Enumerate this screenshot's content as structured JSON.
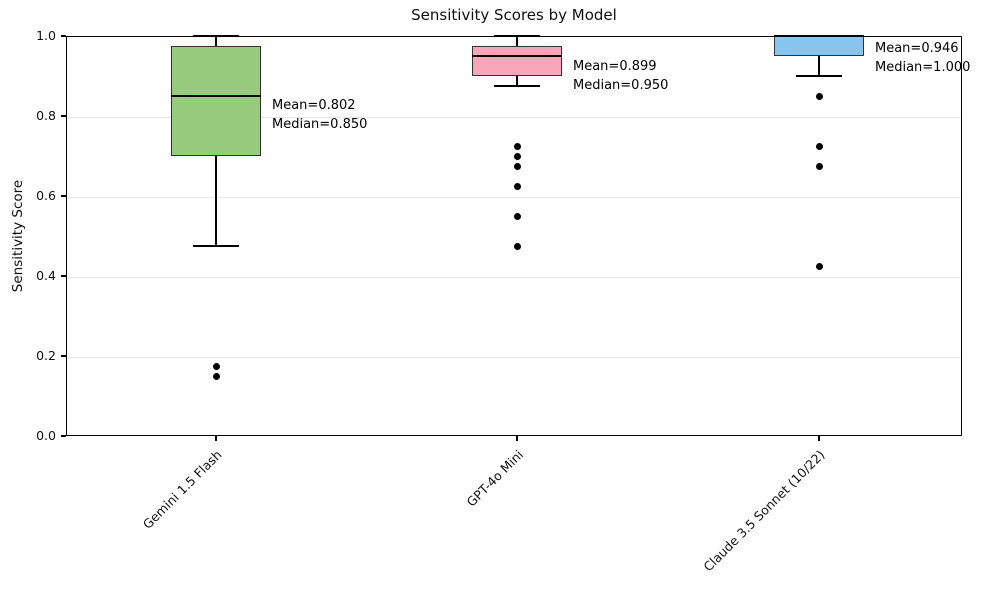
{
  "figure_title": "Sensitivity Scores by Model",
  "chart_data": {
    "type": "box",
    "title": "Sensitivity Scores by Model",
    "xlabel": "",
    "ylabel": "Sensitivity Score",
    "ylim": [
      0.0,
      1.0
    ],
    "ytick_values": [
      0.0,
      0.2,
      0.4,
      0.6,
      0.8,
      1.0
    ],
    "ytick_labels": [
      "0.0",
      "0.2",
      "0.4",
      "0.6",
      "0.8",
      "1.0"
    ],
    "grid": "horizontal light gray",
    "legend": "none",
    "categories": [
      "Gemini 1.5 Flash",
      "GPT-4o Mini",
      "Claude 3.5 Sonnet (10/22)"
    ],
    "series": [
      {
        "model": "Gemini 1.5 Flash",
        "box_color": "#96ca7c",
        "whisker_low": 0.475,
        "q1": 0.7,
        "median": 0.85,
        "q3": 0.975,
        "whisker_high": 1.0,
        "mean": 0.802,
        "outliers": [
          0.175,
          0.15
        ],
        "annotation_lines": [
          "Mean=0.802",
          "Median=0.850"
        ]
      },
      {
        "model": "GPT-4o Mini",
        "box_color": "#f7a5b8",
        "whisker_low": 0.875,
        "q1": 0.9,
        "median": 0.95,
        "q3": 0.975,
        "whisker_high": 1.0,
        "mean": 0.899,
        "outliers": [
          0.725,
          0.7,
          0.675,
          0.625,
          0.55,
          0.475
        ],
        "annotation_lines": [
          "Mean=0.899",
          "Median=0.950"
        ]
      },
      {
        "model": "Claude 3.5 Sonnet (10/22)",
        "box_color": "#87c4ee",
        "whisker_low": 0.9,
        "q1": 0.95,
        "median": 1.0,
        "q3": 1.0,
        "whisker_high": 1.0,
        "mean": 0.946,
        "outliers": [
          0.85,
          0.725,
          0.675,
          0.425
        ],
        "annotation_lines": [
          "Mean=0.946",
          "Median=1.000"
        ]
      }
    ]
  }
}
